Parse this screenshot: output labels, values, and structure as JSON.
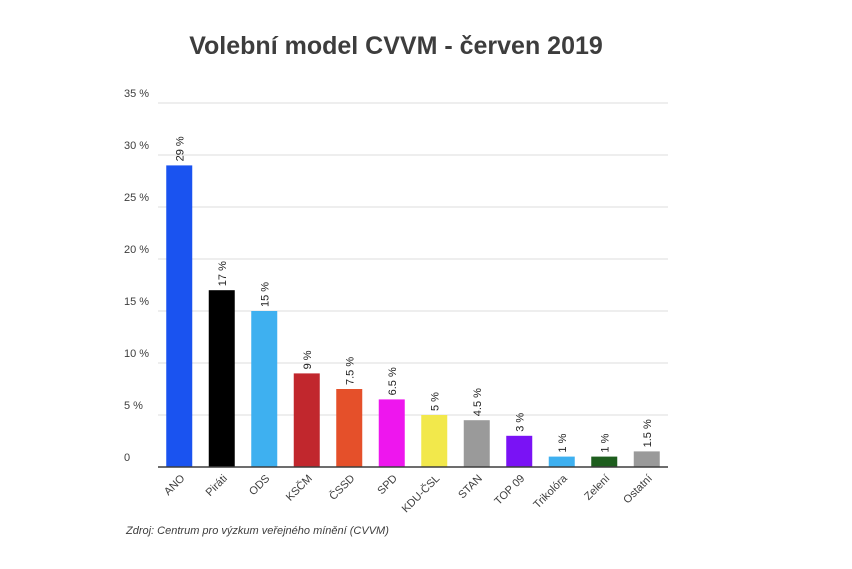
{
  "chart_data": {
    "type": "bar",
    "title": "Volební model CVVM - červen 2019",
    "categories": [
      "ANO",
      "Piráti",
      "ODS",
      "KSČM",
      "ČSSD",
      "SPD",
      "KDU-ČSL",
      "STAN",
      "TOP 09",
      "Trikolóra",
      "Zelení",
      "Ostatní"
    ],
    "values": [
      29,
      17,
      15,
      9,
      7.5,
      6.5,
      5,
      4.5,
      3,
      1,
      1,
      1.5
    ],
    "data_labels": [
      "29 %",
      "17 %",
      "15 %",
      "9 %",
      "7.5 %",
      "6.5 %",
      "5 %",
      "4.5 %",
      "3 %",
      "1 %",
      "1 %",
      "1.5 %"
    ],
    "colors": [
      "#1a53f0",
      "#000000",
      "#3eb0f0",
      "#c1272d",
      "#e5502a",
      "#ee16ee",
      "#f2e84b",
      "#9a9a9a",
      "#7a12f5",
      "#3eb0f0",
      "#1e5e1e",
      "#9a9a9a"
    ],
    "yticks": [
      0,
      5,
      10,
      15,
      20,
      25,
      30,
      35
    ],
    "ytick_labels": [
      "0",
      "5 %",
      "10 %",
      "15 %",
      "20 %",
      "25 %",
      "30 %",
      "35 %"
    ],
    "ylim": [
      0,
      35
    ],
    "grid": true,
    "xlabel": "",
    "ylabel": ""
  },
  "source": "Zdroj: Centrum pro výzkum veřejného mínění (CVVM)"
}
